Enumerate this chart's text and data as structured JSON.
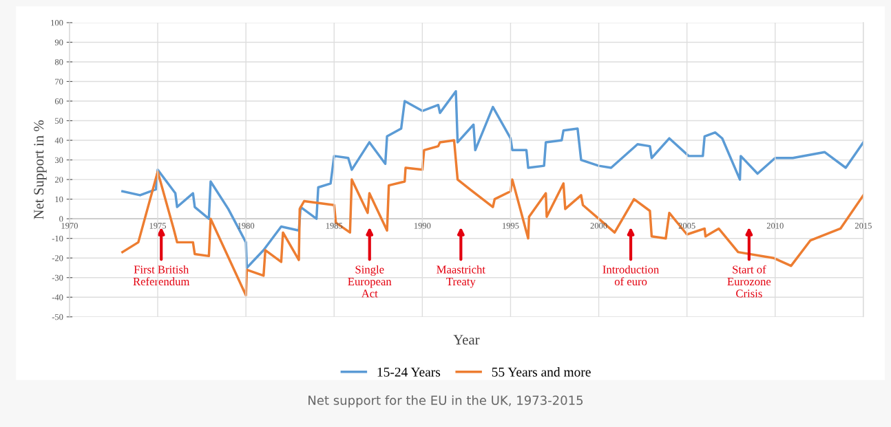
{
  "chart_data": {
    "type": "line",
    "xlabel": "Year",
    "ylabel": "Net Support in %",
    "xlim": [
      1970,
      2015
    ],
    "xticks": [
      1970,
      1975,
      1980,
      1985,
      1990,
      1995,
      2000,
      2005,
      2010,
      2015
    ],
    "ylim": [
      -50,
      100
    ],
    "yticks": [
      -50,
      -40,
      -30,
      -20,
      -10,
      0,
      10,
      20,
      30,
      40,
      50,
      60,
      70,
      80,
      90,
      100
    ],
    "grid": true,
    "legend": "bottom",
    "marker": "none",
    "line_style": "solid",
    "series": [
      {
        "name": "15-24 Years",
        "color": "#5b9bd5",
        "x": [
          1973,
          1974,
          1974.9,
          1975,
          1976,
          1976.1,
          1977,
          1977.1,
          1977.9,
          1978,
          1979,
          1980,
          1980.05,
          1981,
          1982,
          1983,
          1983.1,
          1984,
          1984.1,
          1984.8,
          1985,
          1985.8,
          1986,
          1987,
          1987.9,
          1988,
          1988.8,
          1989,
          1990,
          1990.9,
          1991,
          1991.9,
          1992,
          1992.9,
          1993,
          1994,
          1995,
          1995.1,
          1995.9,
          1996,
          1996.9,
          1997,
          1997.9,
          1998,
          1998.8,
          1999,
          2000,
          2000.7,
          2002.2,
          2002.9,
          2003,
          2004,
          2005.1,
          2005.9,
          2006,
          2006.6,
          2007,
          2008,
          2008.05,
          2009,
          2010,
          2011,
          2012.8,
          2014,
          2015
        ],
        "values": [
          14,
          12,
          15,
          25,
          13,
          6,
          13,
          6,
          0,
          19,
          5,
          -12,
          -25,
          -16,
          -4,
          -6,
          6,
          0,
          16,
          18,
          32,
          31,
          25,
          39,
          28,
          42,
          46,
          60,
          55,
          58,
          54,
          65,
          39,
          48,
          35,
          57,
          41,
          35,
          35,
          26,
          27,
          39,
          40,
          45,
          46,
          30,
          27,
          26,
          38,
          37,
          31,
          41,
          32,
          32,
          42,
          44,
          41,
          20,
          32,
          23,
          31,
          31,
          34,
          26,
          39
        ]
      },
      {
        "name": "55 Years and more",
        "color": "#ed7d31",
        "x": [
          1973,
          1973.9,
          1975,
          1975.9,
          1976.1,
          1977,
          1977.1,
          1977.9,
          1978,
          1980,
          1980.05,
          1981,
          1981.1,
          1982,
          1982.1,
          1983,
          1983.05,
          1983.3,
          1985,
          1985.1,
          1985.9,
          1986,
          1986.9,
          1987,
          1988,
          1988.1,
          1989,
          1989.05,
          1990,
          1990.1,
          1990.9,
          1991,
          1991.8,
          1992,
          1992.7,
          1994,
          1994.1,
          1995,
          1995.1,
          1996,
          1996.05,
          1997,
          1997.05,
          1998,
          1998.1,
          1999,
          1999.1,
          2000,
          2000.9,
          2002,
          2002.9,
          2003,
          2003.8,
          2004,
          2005,
          2006,
          2006.05,
          2006.8,
          2007.9,
          2009.9,
          2010.9,
          2012,
          2013.7,
          2015
        ],
        "values": [
          -17,
          -12,
          24,
          -5,
          -12,
          -12,
          -18,
          -19,
          0,
          -39,
          -26,
          -29,
          -16,
          -22,
          -7,
          -21,
          5,
          9,
          7,
          -2,
          -7,
          20,
          3,
          13,
          -6,
          17,
          19,
          26,
          25,
          35,
          37,
          39,
          40,
          20,
          15,
          6,
          10,
          14,
          20,
          -10,
          1,
          13,
          1,
          18,
          5,
          12,
          7,
          0,
          -7,
          10,
          4,
          -9,
          -10,
          3,
          -8,
          -5,
          -9,
          -5,
          -17,
          -20,
          -24,
          -11,
          -5,
          12
        ]
      }
    ],
    "annotations": [
      "First British\nReferendum",
      "Single\nEuropean\nAct",
      "Maastricht\nTreaty",
      "Introduction\nof euro",
      "Start of\nEurozone\nCrisis",
      "Net support for the EU in the UK, 1973-2015"
    ]
  }
}
